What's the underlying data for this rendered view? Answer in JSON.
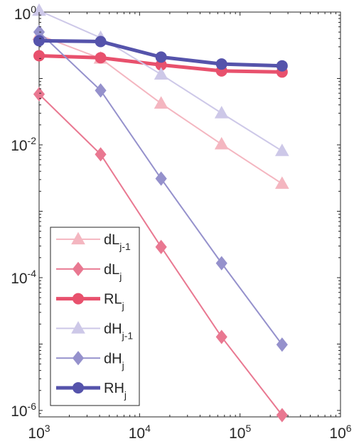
{
  "chart_data": {
    "type": "line",
    "x_scale": "log",
    "y_scale": "log",
    "xlim": [
      1000,
      1000000
    ],
    "ylim": [
      8e-07,
      1.0
    ],
    "x_ticks": [
      {
        "base": "10",
        "exp": "3",
        "value": 1000
      },
      {
        "base": "10",
        "exp": "4",
        "value": 10000
      },
      {
        "base": "10",
        "exp": "5",
        "value": 100000
      },
      {
        "base": "10",
        "exp": "6",
        "value": 1000000
      }
    ],
    "y_ticks": [
      {
        "base": "10",
        "exp": "0",
        "value": 1
      },
      {
        "base": "10",
        "exp": "-2",
        "value": 0.01
      },
      {
        "base": "10",
        "exp": "-4",
        "value": 0.0001
      },
      {
        "base": "10",
        "exp": "-6",
        "value": 1e-06
      }
    ],
    "grid": false,
    "legend_placement": "bottom-left",
    "x": [
      1000,
      4096,
      16384,
      65536,
      262144
    ],
    "series": [
      {
        "name": "dL",
        "sub": "j-1",
        "marker": "triangle",
        "color": "#f4b6c0",
        "width": 2,
        "values": [
          0.45,
          0.2,
          0.042,
          0.0102,
          0.0026
        ]
      },
      {
        "name": "dL",
        "sub": "j",
        "marker": "diamond",
        "color": "#e97891",
        "width": 2,
        "values": [
          0.058,
          0.0072,
          0.00029,
          1.28e-05,
          8.5e-07
        ]
      },
      {
        "name": "RL",
        "sub": "j",
        "marker": "circle",
        "color": "#e8516d",
        "width": 5,
        "values": [
          0.22,
          0.205,
          0.16,
          0.13,
          0.125
        ]
      },
      {
        "name": "dH",
        "sub": "j-1",
        "marker": "triangle",
        "color": "#cdc8e8",
        "width": 2,
        "values": [
          1.05,
          0.41,
          0.115,
          0.03,
          0.0081
        ]
      },
      {
        "name": "dH",
        "sub": "j",
        "marker": "diamond",
        "color": "#9591cc",
        "width": 2,
        "values": [
          0.5,
          0.066,
          0.0031,
          0.000165,
          9.8e-06
        ]
      },
      {
        "name": "RH",
        "sub": "j",
        "marker": "circle",
        "color": "#5553ab",
        "width": 5,
        "values": [
          0.37,
          0.36,
          0.21,
          0.165,
          0.155
        ]
      }
    ]
  }
}
